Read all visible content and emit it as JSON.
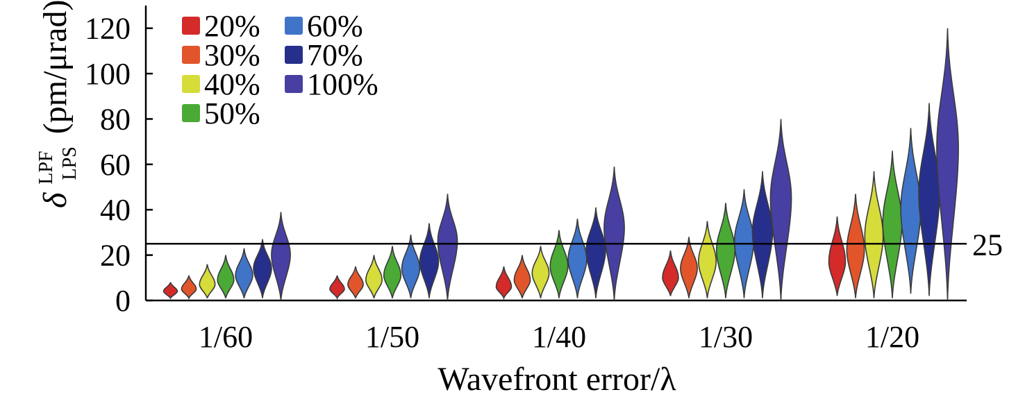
{
  "chart_data": {
    "type": "violin",
    "xlabel": "Wavefront error/λ",
    "ylabel": {
      "symbol": "δ",
      "superscript": "LPF",
      "subscript": "LPS",
      "unit": "(pm/μrad)"
    },
    "categories": [
      "1/60",
      "1/50",
      "1/40",
      "1/30",
      "1/20"
    ],
    "ylim": [
      0,
      130
    ],
    "yticks": [
      "0",
      "20",
      "40",
      "60",
      "80",
      "100",
      "120"
    ],
    "reference_line": {
      "value": 25,
      "label": "25"
    },
    "legend_placement": "top-left",
    "series": [
      {
        "name": "20%",
        "color": "#d42a2a",
        "stats": [
          {
            "min": 1,
            "median": 4,
            "max": 8
          },
          {
            "min": 1,
            "median": 5,
            "max": 11
          },
          {
            "min": 1,
            "median": 6,
            "max": 15
          },
          {
            "min": 2,
            "median": 10,
            "max": 22
          },
          {
            "min": 2,
            "median": 17,
            "max": 37
          }
        ]
      },
      {
        "name": "30%",
        "color": "#e2552b",
        "stats": [
          {
            "min": 1,
            "median": 5,
            "max": 11
          },
          {
            "min": 1,
            "median": 7,
            "max": 15
          },
          {
            "min": 1,
            "median": 9,
            "max": 20
          },
          {
            "min": 1,
            "median": 14,
            "max": 28
          },
          {
            "min": 1,
            "median": 22,
            "max": 47
          }
        ]
      },
      {
        "name": "40%",
        "color": "#d6dc3a",
        "stats": [
          {
            "min": 1,
            "median": 7,
            "max": 16
          },
          {
            "min": 1,
            "median": 9,
            "max": 20
          },
          {
            "min": 1,
            "median": 12,
            "max": 24
          },
          {
            "min": 1,
            "median": 17,
            "max": 35
          },
          {
            "min": 1,
            "median": 28,
            "max": 57
          }
        ]
      },
      {
        "name": "50%",
        "color": "#4aaa35",
        "stats": [
          {
            "min": 1,
            "median": 9,
            "max": 20
          },
          {
            "min": 1,
            "median": 11,
            "max": 24
          },
          {
            "min": 1,
            "median": 15,
            "max": 31
          },
          {
            "min": 1,
            "median": 22,
            "max": 43
          },
          {
            "min": 1,
            "median": 34,
            "max": 66
          }
        ]
      },
      {
        "name": "60%",
        "color": "#3f74c8",
        "stats": [
          {
            "min": 1,
            "median": 11,
            "max": 23
          },
          {
            "min": 1,
            "median": 14,
            "max": 29
          },
          {
            "min": 1,
            "median": 18,
            "max": 36
          },
          {
            "min": 1,
            "median": 26,
            "max": 49
          },
          {
            "min": 3,
            "median": 40,
            "max": 76
          }
        ]
      },
      {
        "name": "70%",
        "color": "#272f8c",
        "stats": [
          {
            "min": 1,
            "median": 14,
            "max": 27
          },
          {
            "min": 1,
            "median": 17,
            "max": 34
          },
          {
            "min": 1,
            "median": 22,
            "max": 41
          },
          {
            "min": 1,
            "median": 30,
            "max": 57
          },
          {
            "min": 2,
            "median": 47,
            "max": 87
          }
        ]
      },
      {
        "name": "100%",
        "color": "#4740a2",
        "stats": [
          {
            "min": 0,
            "median": 20,
            "max": 39
          },
          {
            "min": 0,
            "median": 26,
            "max": 47
          },
          {
            "min": 0,
            "median": 32,
            "max": 59
          },
          {
            "min": 0,
            "median": 45,
            "max": 80
          },
          {
            "min": 0,
            "median": 67,
            "max": 120
          }
        ]
      }
    ]
  }
}
